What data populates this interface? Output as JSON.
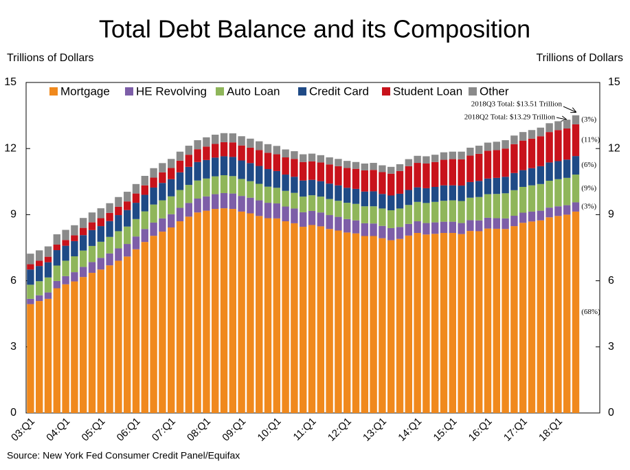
{
  "chart_data": {
    "type": "stacked_bar",
    "title": "Total Debt Balance and its Composition",
    "y_label": "Trillions of Dollars",
    "y2_label": "Trillions of Dollars",
    "source": "Source: New York Fed Consumer Credit Panel/Equifax",
    "annotations": [
      "2018Q3 Total: $13.51 Trillion",
      "2018Q2 Total: $13.29 Trillion"
    ],
    "categories": [
      "03:Q1",
      null,
      null,
      null,
      "04:Q1",
      null,
      null,
      null,
      "05:Q1",
      null,
      null,
      null,
      "06:Q1",
      null,
      null,
      null,
      "07:Q1",
      null,
      null,
      null,
      "08:Q1",
      null,
      null,
      null,
      "09:Q1",
      null,
      null,
      null,
      "10:Q1",
      null,
      null,
      null,
      "11:Q1",
      null,
      null,
      null,
      "12:Q1",
      null,
      null,
      null,
      "13:Q1",
      null,
      null,
      null,
      "14:Q1",
      null,
      null,
      null,
      "15:Q1",
      null,
      null,
      null,
      "16:Q1",
      null,
      null,
      null,
      "17:Q1",
      null,
      null,
      null,
      "18:Q1",
      null,
      null
    ],
    "series": [
      {
        "name": "Mortgage",
        "color": "#f0891d",
        "share_label": "(68%)",
        "values": [
          4.94,
          5.08,
          5.18,
          5.66,
          5.84,
          5.97,
          6.17,
          6.36,
          6.51,
          6.7,
          6.91,
          7.1,
          7.43,
          7.76,
          8.04,
          8.23,
          8.42,
          8.7,
          8.91,
          9.1,
          9.18,
          9.26,
          9.29,
          9.26,
          9.14,
          9.06,
          8.94,
          8.84,
          8.83,
          8.7,
          8.61,
          8.45,
          8.53,
          8.47,
          8.35,
          8.28,
          8.19,
          8.15,
          8.03,
          8.03,
          7.93,
          7.84,
          7.9,
          8.05,
          8.17,
          8.1,
          8.13,
          8.17,
          8.17,
          8.12,
          8.26,
          8.25,
          8.37,
          8.36,
          8.35,
          8.48,
          8.63,
          8.69,
          8.74,
          8.88,
          8.94,
          9.0,
          9.14
        ]
      },
      {
        "name": "HE Revolving",
        "color": "#7d5ea8",
        "share_label": "(3%)",
        "values": [
          0.24,
          0.26,
          0.29,
          0.33,
          0.37,
          0.42,
          0.46,
          0.49,
          0.53,
          0.54,
          0.56,
          0.57,
          0.58,
          0.59,
          0.6,
          0.6,
          0.6,
          0.61,
          0.62,
          0.63,
          0.65,
          0.67,
          0.69,
          0.7,
          0.71,
          0.71,
          0.71,
          0.7,
          0.68,
          0.67,
          0.67,
          0.66,
          0.64,
          0.63,
          0.63,
          0.62,
          0.61,
          0.59,
          0.58,
          0.57,
          0.56,
          0.55,
          0.54,
          0.53,
          0.53,
          0.52,
          0.52,
          0.51,
          0.51,
          0.5,
          0.49,
          0.49,
          0.49,
          0.48,
          0.48,
          0.47,
          0.46,
          0.45,
          0.44,
          0.44,
          0.44,
          0.43,
          0.42
        ]
      },
      {
        "name": "Auto Loan",
        "color": "#8fb65a",
        "share_label": "(9%)",
        "values": [
          0.64,
          0.64,
          0.68,
          0.7,
          0.7,
          0.72,
          0.74,
          0.73,
          0.73,
          0.75,
          0.78,
          0.79,
          0.79,
          0.8,
          0.82,
          0.82,
          0.81,
          0.81,
          0.82,
          0.82,
          0.81,
          0.81,
          0.81,
          0.79,
          0.77,
          0.75,
          0.75,
          0.73,
          0.71,
          0.71,
          0.71,
          0.71,
          0.71,
          0.72,
          0.73,
          0.73,
          0.74,
          0.75,
          0.77,
          0.78,
          0.79,
          0.81,
          0.84,
          0.86,
          0.88,
          0.91,
          0.93,
          0.95,
          0.97,
          1.0,
          1.02,
          1.06,
          1.07,
          1.1,
          1.14,
          1.16,
          1.17,
          1.19,
          1.21,
          1.22,
          1.23,
          1.24,
          1.26
        ]
      },
      {
        "name": "Credit Card",
        "color": "#1f4a86",
        "share_label": "(6%)",
        "values": [
          0.69,
          0.69,
          0.69,
          0.7,
          0.68,
          0.69,
          0.7,
          0.72,
          0.71,
          0.72,
          0.73,
          0.75,
          0.74,
          0.75,
          0.77,
          0.79,
          0.78,
          0.8,
          0.82,
          0.84,
          0.84,
          0.85,
          0.86,
          0.87,
          0.84,
          0.82,
          0.81,
          0.8,
          0.76,
          0.74,
          0.73,
          0.73,
          0.7,
          0.7,
          0.7,
          0.7,
          0.68,
          0.68,
          0.67,
          0.68,
          0.66,
          0.67,
          0.67,
          0.68,
          0.66,
          0.67,
          0.68,
          0.7,
          0.68,
          0.7,
          0.71,
          0.73,
          0.71,
          0.73,
          0.75,
          0.78,
          0.76,
          0.78,
          0.81,
          0.83,
          0.82,
          0.83,
          0.84
        ]
      },
      {
        "name": "Student Loan",
        "color": "#c8121b",
        "share_label": "(11%)",
        "values": [
          0.24,
          0.24,
          0.25,
          0.25,
          0.26,
          0.26,
          0.33,
          0.35,
          0.36,
          0.37,
          0.38,
          0.39,
          0.42,
          0.43,
          0.45,
          0.48,
          0.51,
          0.53,
          0.55,
          0.58,
          0.61,
          0.62,
          0.64,
          0.66,
          0.68,
          0.7,
          0.72,
          0.74,
          0.76,
          0.78,
          0.81,
          0.84,
          0.84,
          0.85,
          0.87,
          0.87,
          0.9,
          0.91,
          0.96,
          0.97,
          0.99,
          0.99,
          1.03,
          1.08,
          1.11,
          1.12,
          1.13,
          1.16,
          1.19,
          1.19,
          1.2,
          1.23,
          1.26,
          1.26,
          1.28,
          1.31,
          1.34,
          1.34,
          1.36,
          1.38,
          1.41,
          1.41,
          1.44
        ]
      },
      {
        "name": "Other",
        "color": "#8a8a8a",
        "share_label": "(3%)",
        "values": [
          0.48,
          0.47,
          0.47,
          0.47,
          0.46,
          0.46,
          0.45,
          0.45,
          0.45,
          0.44,
          0.44,
          0.44,
          0.43,
          0.43,
          0.43,
          0.42,
          0.41,
          0.41,
          0.41,
          0.41,
          0.42,
          0.42,
          0.41,
          0.41,
          0.42,
          0.41,
          0.4,
          0.39,
          0.38,
          0.36,
          0.35,
          0.35,
          0.35,
          0.33,
          0.32,
          0.33,
          0.32,
          0.31,
          0.31,
          0.32,
          0.31,
          0.31,
          0.31,
          0.32,
          0.32,
          0.33,
          0.33,
          0.34,
          0.34,
          0.35,
          0.36,
          0.37,
          0.37,
          0.38,
          0.38,
          0.39,
          0.39,
          0.39,
          0.39,
          0.4,
          0.4,
          0.4,
          0.41
        ]
      }
    ],
    "ylim": [
      0,
      15
    ],
    "yticks": [
      0,
      3,
      6,
      9,
      12,
      15
    ],
    "y2lim": [
      0,
      15
    ],
    "y2ticks": [
      0,
      3,
      6,
      9,
      12,
      15
    ],
    "legend": "top"
  }
}
